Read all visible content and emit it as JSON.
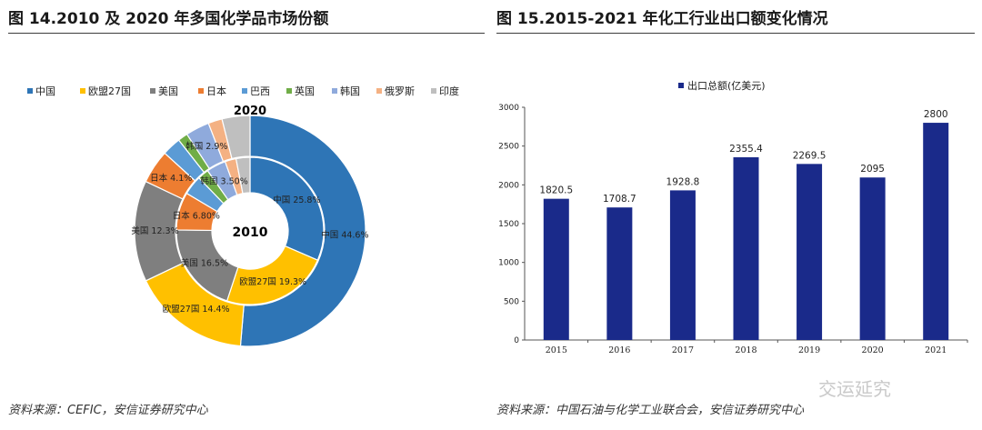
{
  "left_title": "图 14.2010 及 2020 年多国化学品市场份额",
  "right_title": "图 15.2015-2021 年化工行业出口额变化情况",
  "left_source": "资料来源：CEFIC，安信证券研究中心",
  "right_source": "资料来源：中国石油与化学工业联合会，安信证券研究中心",
  "watermark": "交运延究",
  "colors": {
    "中国": "#2e75b6",
    "欧盟27国": "#ffc000",
    "美国": "#7f7f7f",
    "日本": "#ed7d31",
    "巴西": "#5b9bd5",
    "英国": "#70ad47",
    "韩国": "#8faadc",
    "俄罗斯": "#f4b183",
    "印度": "#bfbfbf",
    "bar": "#1a2a8a"
  },
  "chart_data": [
    {
      "type": "pie",
      "subtype": "donut",
      "legend": [
        "中国",
        "欧盟27国",
        "美国",
        "日本",
        "巴西",
        "英国",
        "韩国",
        "俄罗斯",
        "印度"
      ],
      "outer_ring": {
        "year_label": "2020",
        "slices": [
          {
            "name": "中国",
            "value": 44.6,
            "label": "中国 44.6%"
          },
          {
            "name": "欧盟27国",
            "value": 14.4,
            "label": "欧盟27国 14.4%"
          },
          {
            "name": "美国",
            "value": 12.3,
            "label": "美国 12.3%"
          },
          {
            "name": "日本",
            "value": 4.1,
            "label": "日本 4.1%"
          },
          {
            "name": "巴西",
            "value": 2.3,
            "label": ""
          },
          {
            "name": "英国",
            "value": 1.2,
            "label": ""
          },
          {
            "name": "韩国",
            "value": 2.9,
            "label": "韩国 2.9%"
          },
          {
            "name": "俄罗斯",
            "value": 1.7,
            "label": ""
          },
          {
            "name": "印度",
            "value": 3.4,
            "label": ""
          }
        ]
      },
      "inner_ring": {
        "year_label": "2010",
        "slices": [
          {
            "name": "中国",
            "value": 25.8,
            "label": "中国 25.8%"
          },
          {
            "name": "欧盟27国",
            "value": 19.3,
            "label": "欧盟27国 19.3%"
          },
          {
            "name": "美国",
            "value": 16.5,
            "label": "美国 16.5%"
          },
          {
            "name": "日本",
            "value": 6.8,
            "label": "日本 6.80%"
          },
          {
            "name": "巴西",
            "value": 3.5,
            "label": ""
          },
          {
            "name": "英国",
            "value": 2.0,
            "label": ""
          },
          {
            "name": "韩国",
            "value": 3.5,
            "label": "韩国 3.50%"
          },
          {
            "name": "俄罗斯",
            "value": 2.0,
            "label": ""
          },
          {
            "name": "印度",
            "value": 2.5,
            "label": ""
          }
        ]
      }
    },
    {
      "type": "bar",
      "legend": [
        "出口总额(亿美元)"
      ],
      "categories": [
        "2015",
        "2016",
        "2017",
        "2018",
        "2019",
        "2020",
        "2021"
      ],
      "series": [
        {
          "name": "出口总额(亿美元)",
          "values": [
            1820.5,
            1708.7,
            1928.8,
            2355.4,
            2269.5,
            2095,
            2800
          ],
          "labels": [
            "1820.5",
            "1708.7",
            "1928.8",
            "2355.4",
            "2269.5",
            "2095",
            "2800"
          ]
        }
      ],
      "ylim": [
        0,
        3000
      ],
      "yticks": [
        "0",
        "500",
        "1000",
        "1500",
        "2000",
        "2500",
        "3000"
      ],
      "grid": false,
      "legend_position": "top"
    }
  ]
}
